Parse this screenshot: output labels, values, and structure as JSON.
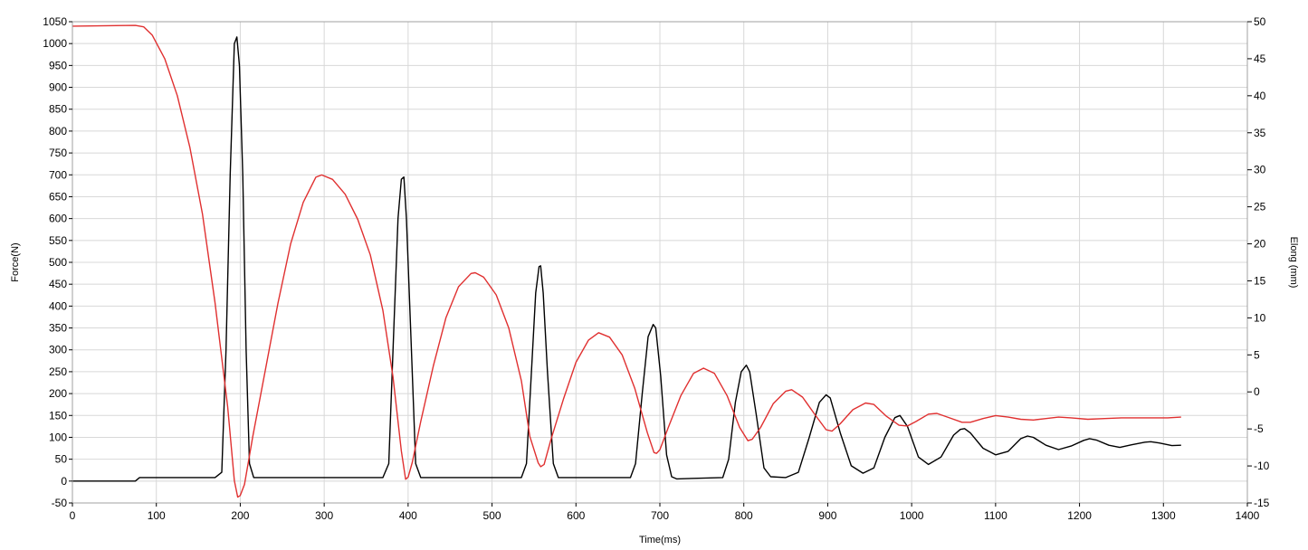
{
  "chart_data": {
    "type": "line",
    "xlabel": "Time(ms)",
    "ylabel_left": "Force(N)",
    "ylabel_right": "Elong (mm)",
    "xlim": [
      0,
      1400
    ],
    "ylim_left": [
      -50,
      1050
    ],
    "ylim_right": [
      -15,
      50
    ],
    "x_ticks": [
      "0",
      "100",
      "200",
      "300",
      "400",
      "500",
      "600",
      "700",
      "800",
      "900",
      "1000",
      "1100",
      "1200",
      "1300",
      "1400"
    ],
    "y_left_ticks": [
      "-50",
      "0",
      "50",
      "100",
      "150",
      "200",
      "250",
      "300",
      "350",
      "400",
      "450",
      "500",
      "550",
      "600",
      "650",
      "700",
      "750",
      "800",
      "850",
      "900",
      "950",
      "1000",
      "1050"
    ],
    "y_right_ticks": [
      "-15",
      "-10",
      "-5",
      "0",
      "5",
      "10",
      "15",
      "20",
      "25",
      "30",
      "35",
      "40",
      "45",
      "50"
    ],
    "grid": true,
    "series": [
      {
        "axis": "left",
        "color": "#000000",
        "points": [
          [
            0,
            0
          ],
          [
            75,
            0
          ],
          [
            80,
            8
          ],
          [
            170,
            8
          ],
          [
            178,
            20
          ],
          [
            183,
            300
          ],
          [
            188,
            700
          ],
          [
            193,
            1000
          ],
          [
            196,
            1015
          ],
          [
            199,
            950
          ],
          [
            203,
            700
          ],
          [
            207,
            300
          ],
          [
            211,
            40
          ],
          [
            216,
            8
          ],
          [
            370,
            8
          ],
          [
            377,
            40
          ],
          [
            383,
            350
          ],
          [
            388,
            600
          ],
          [
            392,
            690
          ],
          [
            395,
            695
          ],
          [
            398,
            600
          ],
          [
            403,
            350
          ],
          [
            409,
            40
          ],
          [
            415,
            8
          ],
          [
            535,
            8
          ],
          [
            541,
            40
          ],
          [
            547,
            250
          ],
          [
            552,
            430
          ],
          [
            556,
            490
          ],
          [
            558,
            492
          ],
          [
            561,
            430
          ],
          [
            566,
            250
          ],
          [
            573,
            40
          ],
          [
            579,
            8
          ],
          [
            665,
            8
          ],
          [
            671,
            40
          ],
          [
            679,
            200
          ],
          [
            686,
            330
          ],
          [
            692,
            358
          ],
          [
            695,
            350
          ],
          [
            701,
            240
          ],
          [
            708,
            60
          ],
          [
            714,
            10
          ],
          [
            720,
            5
          ],
          [
            775,
            8
          ],
          [
            782,
            50
          ],
          [
            790,
            180
          ],
          [
            797,
            250
          ],
          [
            803,
            265
          ],
          [
            807,
            250
          ],
          [
            815,
            150
          ],
          [
            824,
            30
          ],
          [
            832,
            10
          ],
          [
            850,
            8
          ],
          [
            865,
            20
          ],
          [
            878,
            100
          ],
          [
            890,
            180
          ],
          [
            898,
            197
          ],
          [
            903,
            190
          ],
          [
            915,
            110
          ],
          [
            928,
            35
          ],
          [
            942,
            18
          ],
          [
            955,
            30
          ],
          [
            968,
            100
          ],
          [
            980,
            145
          ],
          [
            986,
            150
          ],
          [
            995,
            125
          ],
          [
            1008,
            55
          ],
          [
            1020,
            38
          ],
          [
            1035,
            55
          ],
          [
            1050,
            105
          ],
          [
            1058,
            118
          ],
          [
            1063,
            120
          ],
          [
            1070,
            110
          ],
          [
            1085,
            75
          ],
          [
            1100,
            60
          ],
          [
            1115,
            68
          ],
          [
            1130,
            97
          ],
          [
            1138,
            103
          ],
          [
            1145,
            100
          ],
          [
            1160,
            82
          ],
          [
            1175,
            72
          ],
          [
            1190,
            80
          ],
          [
            1205,
            93
          ],
          [
            1212,
            97
          ],
          [
            1220,
            94
          ],
          [
            1235,
            82
          ],
          [
            1248,
            77
          ],
          [
            1262,
            83
          ],
          [
            1278,
            89
          ],
          [
            1285,
            90
          ],
          [
            1295,
            87
          ],
          [
            1310,
            81
          ],
          [
            1321,
            82
          ]
        ]
      },
      {
        "axis": "right",
        "color": "#e03030",
        "points": [
          [
            0,
            49.4
          ],
          [
            75,
            49.5
          ],
          [
            85,
            49.3
          ],
          [
            95,
            48.2
          ],
          [
            110,
            45
          ],
          [
            125,
            40
          ],
          [
            140,
            33
          ],
          [
            155,
            24
          ],
          [
            170,
            12
          ],
          [
            185,
            -2
          ],
          [
            193,
            -12
          ],
          [
            197,
            -14.2
          ],
          [
            200,
            -14
          ],
          [
            205,
            -12.5
          ],
          [
            215,
            -6
          ],
          [
            230,
            3
          ],
          [
            245,
            12
          ],
          [
            260,
            20
          ],
          [
            275,
            25.6
          ],
          [
            290,
            29
          ],
          [
            297,
            29.3
          ],
          [
            310,
            28.7
          ],
          [
            325,
            26.7
          ],
          [
            340,
            23.3
          ],
          [
            355,
            18.5
          ],
          [
            370,
            11
          ],
          [
            382,
            2
          ],
          [
            392,
            -8
          ],
          [
            397,
            -11.8
          ],
          [
            400,
            -11.5
          ],
          [
            405,
            -9.5
          ],
          [
            415,
            -4
          ],
          [
            430,
            3.5
          ],
          [
            445,
            10
          ],
          [
            460,
            14.2
          ],
          [
            475,
            16
          ],
          [
            480,
            16.1
          ],
          [
            490,
            15.5
          ],
          [
            505,
            13.1
          ],
          [
            520,
            8.6
          ],
          [
            535,
            1.5
          ],
          [
            545,
            -6
          ],
          [
            555,
            -9.6
          ],
          [
            558,
            -10.1
          ],
          [
            562,
            -9.8
          ],
          [
            570,
            -6.5
          ],
          [
            585,
            -1
          ],
          [
            600,
            4
          ],
          [
            615,
            7
          ],
          [
            627,
            8
          ],
          [
            640,
            7.4
          ],
          [
            655,
            5
          ],
          [
            670,
            0.5
          ],
          [
            685,
            -5.5
          ],
          [
            693,
            -8.2
          ],
          [
            696,
            -8.3
          ],
          [
            700,
            -7.8
          ],
          [
            710,
            -4.8
          ],
          [
            725,
            -0.5
          ],
          [
            740,
            2.5
          ],
          [
            752,
            3.2
          ],
          [
            765,
            2.5
          ],
          [
            780,
            -0.5
          ],
          [
            795,
            -4.8
          ],
          [
            805,
            -6.6
          ],
          [
            810,
            -6.4
          ],
          [
            820,
            -4.8
          ],
          [
            835,
            -1.6
          ],
          [
            850,
            0.1
          ],
          [
            857,
            0.3
          ],
          [
            870,
            -0.7
          ],
          [
            885,
            -3.1
          ],
          [
            898,
            -5.1
          ],
          [
            905,
            -5.3
          ],
          [
            915,
            -4.3
          ],
          [
            930,
            -2.4
          ],
          [
            945,
            -1.5
          ],
          [
            955,
            -1.7
          ],
          [
            970,
            -3.3
          ],
          [
            985,
            -4.5
          ],
          [
            995,
            -4.6
          ],
          [
            1005,
            -4
          ],
          [
            1020,
            -3
          ],
          [
            1030,
            -2.9
          ],
          [
            1045,
            -3.5
          ],
          [
            1060,
            -4.1
          ],
          [
            1070,
            -4.1
          ],
          [
            1085,
            -3.6
          ],
          [
            1100,
            -3.2
          ],
          [
            1115,
            -3.4
          ],
          [
            1130,
            -3.7
          ],
          [
            1145,
            -3.8
          ],
          [
            1160,
            -3.6
          ],
          [
            1175,
            -3.4
          ],
          [
            1190,
            -3.5
          ],
          [
            1210,
            -3.7
          ],
          [
            1230,
            -3.6
          ],
          [
            1250,
            -3.5
          ],
          [
            1270,
            -3.5
          ],
          [
            1290,
            -3.5
          ],
          [
            1305,
            -3.5
          ],
          [
            1321,
            -3.4
          ]
        ]
      }
    ]
  }
}
